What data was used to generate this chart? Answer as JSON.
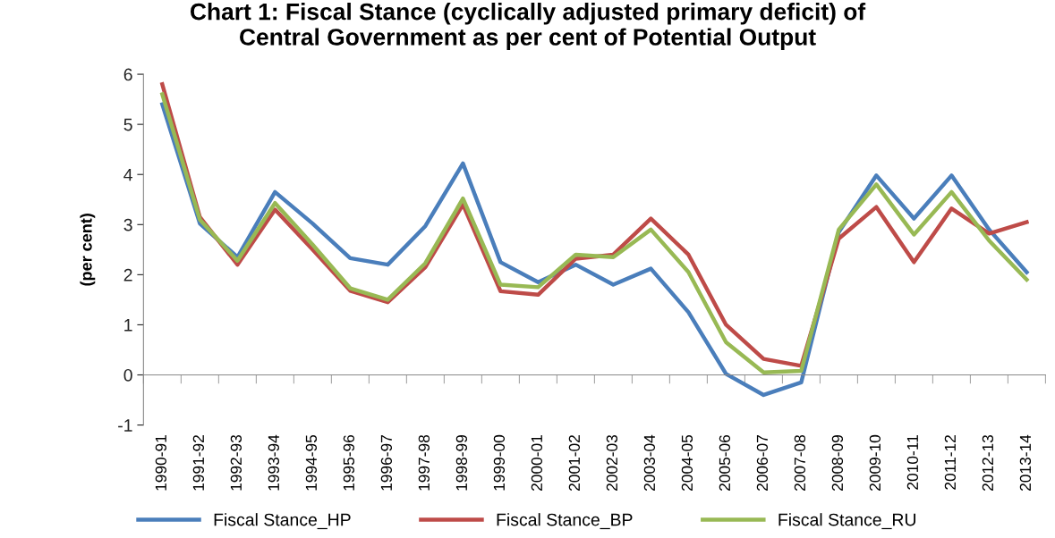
{
  "chart_data": {
    "type": "line",
    "title": "Chart 1: Fiscal Stance (cyclically adjusted primary deficit) of\nCentral Government as per cent of Potential Output",
    "ylabel": "(per cent)",
    "categories": [
      "1990-91",
      "1991-92",
      "1992-93",
      "1993-94",
      "1994-95",
      "1995-96",
      "1996-97",
      "1997-98",
      "1998-99",
      "1999-00",
      "2000-01",
      "2001-02",
      "2002-03",
      "2003-04",
      "2004-05",
      "2005-06",
      "2006-07",
      "2007-08",
      "2008-09",
      "2009-10",
      "2010-11",
      "2011-12",
      "2012-13",
      "2013-14"
    ],
    "series": [
      {
        "name": "Fiscal Stance_HP",
        "color": "#4a7ebb",
        "values": [
          5.4,
          3.02,
          2.35,
          3.65,
          3.02,
          2.33,
          2.2,
          2.97,
          4.22,
          2.25,
          1.85,
          2.2,
          1.8,
          2.12,
          1.25,
          0.02,
          -0.4,
          -0.15,
          2.85,
          3.98,
          3.12,
          3.98,
          2.9,
          2.05
        ]
      },
      {
        "name": "Fiscal Stance_BP",
        "color": "#be4b48",
        "values": [
          5.8,
          3.15,
          2.2,
          3.3,
          2.5,
          1.68,
          1.45,
          2.15,
          3.4,
          1.67,
          1.6,
          2.32,
          2.4,
          3.12,
          2.4,
          1.0,
          0.32,
          0.18,
          2.72,
          3.35,
          2.25,
          3.32,
          2.82,
          3.05
        ]
      },
      {
        "name": "Fiscal Stance_RU",
        "color": "#98b954",
        "values": [
          5.6,
          3.1,
          2.28,
          3.43,
          2.6,
          1.73,
          1.5,
          2.23,
          3.52,
          1.8,
          1.75,
          2.4,
          2.35,
          2.9,
          2.05,
          0.65,
          0.05,
          0.08,
          2.9,
          3.8,
          2.8,
          3.65,
          2.68,
          1.9
        ]
      }
    ],
    "ylim": [
      -1,
      6
    ],
    "yticks": [
      -1,
      0,
      1,
      2,
      3,
      4,
      5,
      6
    ],
    "legend": "bottom",
    "marker": "none",
    "line_style": "solid"
  }
}
